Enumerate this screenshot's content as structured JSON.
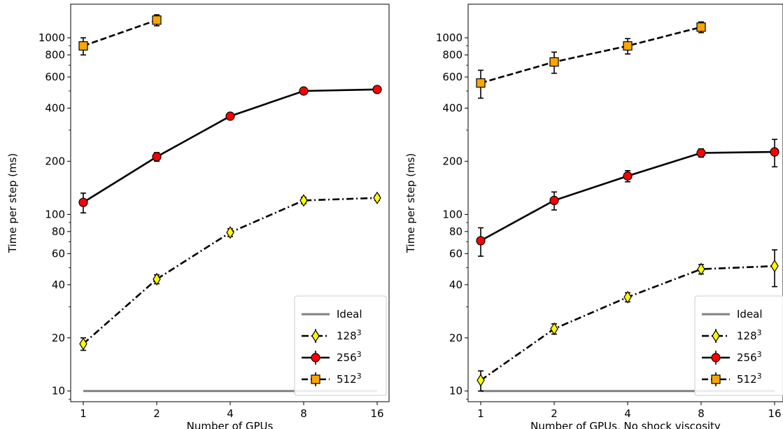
{
  "chart_data": [
    {
      "type": "line",
      "xscale": "log2",
      "yscale": "log",
      "xlabel": "Number of GPUs",
      "ylabel": "Time per step (ms)",
      "xticks": [
        "1",
        "2",
        "4",
        "8",
        "16"
      ],
      "yticks": [
        "10",
        "20",
        "40",
        "60",
        "80",
        "100",
        "200",
        "400",
        "600",
        "800",
        "1000"
      ],
      "ylim": [
        8.7,
        1550
      ],
      "grid": false,
      "legend_position": "lower-right",
      "series": [
        {
          "name": "Ideal",
          "style": "solid",
          "color": "#808080",
          "x": [
            1,
            16
          ],
          "y": [
            10,
            10
          ]
        },
        {
          "name": "128³",
          "style": "dashdot",
          "marker": "diamond",
          "color": "#ffff00",
          "x": [
            1,
            2,
            4,
            8,
            16
          ],
          "y": [
            18.5,
            43,
            79,
            120,
            124
          ],
          "err": [
            1.5,
            2.5,
            4,
            5,
            4
          ]
        },
        {
          "name": "256³",
          "style": "solid",
          "marker": "circle",
          "color": "#ff0000",
          "x": [
            1,
            2,
            4,
            8,
            16
          ],
          "y": [
            117,
            212,
            360,
            500,
            510
          ],
          "err": [
            15,
            12,
            12,
            10,
            10
          ]
        },
        {
          "name": "512³",
          "style": "dashed",
          "marker": "square",
          "color": "#ffa500",
          "x": [
            1,
            2
          ],
          "y": [
            900,
            1260
          ],
          "err": [
            100,
            90
          ]
        }
      ]
    },
    {
      "type": "line",
      "xscale": "log2",
      "yscale": "log",
      "xlabel": "Number of GPUs, No shock viscosity",
      "ylabel": "Time per step (ms)",
      "xticks": [
        "1",
        "2",
        "4",
        "8",
        "16"
      ],
      "yticks": [
        "10",
        "20",
        "40",
        "60",
        "80",
        "100",
        "200",
        "400",
        "600",
        "800",
        "1000"
      ],
      "ylim": [
        8.7,
        1550
      ],
      "grid": false,
      "legend_position": "lower-right",
      "series": [
        {
          "name": "Ideal",
          "style": "solid",
          "color": "#808080",
          "x": [
            1,
            16
          ],
          "y": [
            10,
            10
          ]
        },
        {
          "name": "128³",
          "style": "dashdot",
          "marker": "diamond",
          "color": "#ffff00",
          "x": [
            1,
            2,
            4,
            8,
            16
          ],
          "y": [
            11.5,
            22.5,
            34,
            49,
            51
          ],
          "err": [
            1.5,
            1.5,
            2,
            3,
            12
          ]
        },
        {
          "name": "256³",
          "style": "solid",
          "marker": "circle",
          "color": "#ff0000",
          "x": [
            1,
            2,
            4,
            8,
            16
          ],
          "y": [
            71,
            120,
            165,
            223,
            226
          ],
          "err": [
            13,
            14,
            12,
            12,
            40
          ]
        },
        {
          "name": "512³",
          "style": "dashed",
          "marker": "square",
          "color": "#ffa500",
          "x": [
            1,
            2,
            4,
            8
          ],
          "y": [
            555,
            730,
            900,
            1150
          ],
          "err": [
            100,
            100,
            90,
            80
          ]
        }
      ]
    }
  ]
}
